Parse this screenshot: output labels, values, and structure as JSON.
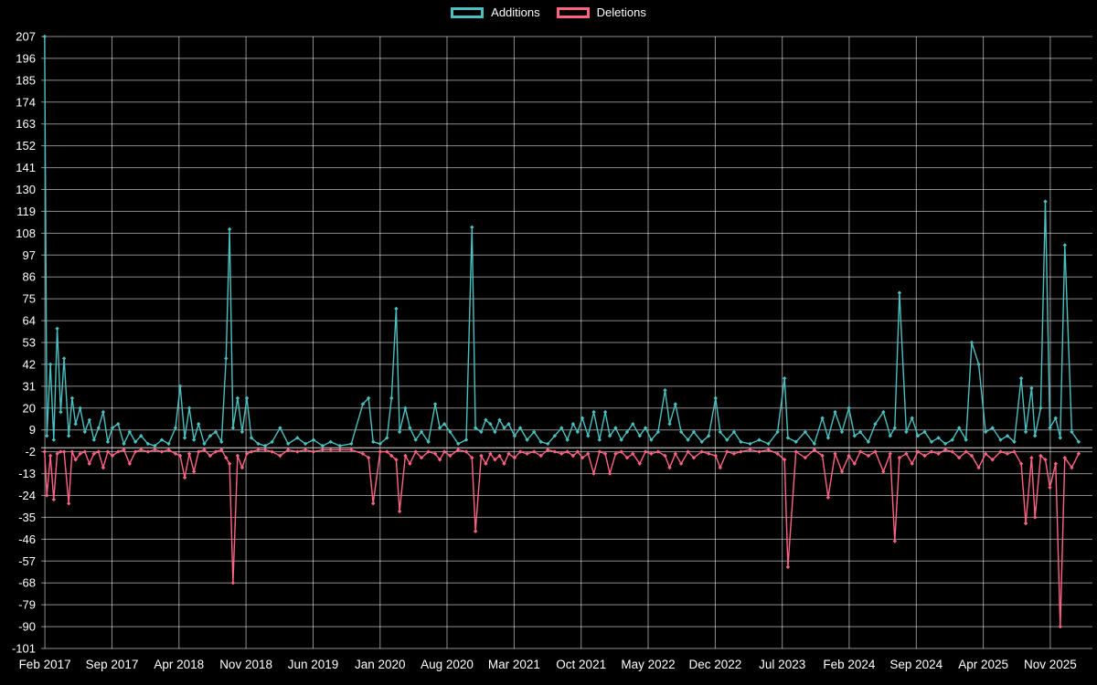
{
  "page": {
    "background": "#000000",
    "text_color": "#ffffff"
  },
  "legend": {
    "items": [
      {
        "label": "Additions",
        "color": "#4bc0c0"
      },
      {
        "label": "Deletions",
        "color": "#ff6384"
      }
    ]
  },
  "chart_data": {
    "type": "line",
    "title": "",
    "xlabel": "",
    "ylabel": "",
    "legend_position": "top",
    "grid": true,
    "background": "#000000",
    "grid_color": "rgba(255,255,255,0.55)",
    "zero_line_color": "rgba(255,255,255,0.85)",
    "text_color": "#ffffff",
    "ylim": [
      -101,
      207
    ],
    "xlim": [
      2017.05,
      2026.2
    ],
    "y_ticks": [
      207,
      196,
      185,
      174,
      163,
      152,
      141,
      130,
      119,
      108,
      97,
      86,
      75,
      64,
      53,
      42,
      31,
      20,
      9,
      -2,
      -13,
      -24,
      -35,
      -46,
      -57,
      -68,
      -79,
      -90,
      -101
    ],
    "x_ticks": [
      {
        "label": "Feb 2017",
        "x": 2017.083
      },
      {
        "label": "Sep 2017",
        "x": 2017.667
      },
      {
        "label": "Apr 2018",
        "x": 2018.25
      },
      {
        "label": "Nov 2018",
        "x": 2018.833
      },
      {
        "label": "Jun 2019",
        "x": 2019.417
      },
      {
        "label": "Jan 2020",
        "x": 2020.0
      },
      {
        "label": "Aug 2020",
        "x": 2020.583
      },
      {
        "label": "Mar 2021",
        "x": 2021.167
      },
      {
        "label": "Oct 2021",
        "x": 2021.75
      },
      {
        "label": "May 2022",
        "x": 2022.333
      },
      {
        "label": "Dec 2022",
        "x": 2022.917
      },
      {
        "label": "Jul 2023",
        "x": 2023.5
      },
      {
        "label": "Feb 2024",
        "x": 2024.083
      },
      {
        "label": "Sep 2024",
        "x": 2024.667
      },
      {
        "label": "Apr 2025",
        "x": 2025.25
      },
      {
        "label": "Nov 2025",
        "x": 2025.833
      }
    ],
    "series": [
      {
        "name": "Additions",
        "color": "#4bc0c0"
      },
      {
        "name": "Deletions",
        "color": "#ff6384"
      }
    ],
    "x_unit": "decimal_year",
    "points_format": [
      "x_decimal_year",
      "additions",
      "deletions"
    ],
    "points": [
      [
        2017.08,
        207,
        -2
      ],
      [
        2017.1,
        6,
        -24
      ],
      [
        2017.13,
        42,
        -4
      ],
      [
        2017.16,
        4,
        -26
      ],
      [
        2017.19,
        60,
        -3
      ],
      [
        2017.22,
        18,
        -2
      ],
      [
        2017.25,
        45,
        -2
      ],
      [
        2017.29,
        6,
        -28
      ],
      [
        2017.32,
        25,
        -2
      ],
      [
        2017.35,
        12,
        -6
      ],
      [
        2017.39,
        20,
        -3
      ],
      [
        2017.43,
        8,
        -2
      ],
      [
        2017.47,
        14,
        -8
      ],
      [
        2017.51,
        4,
        -3
      ],
      [
        2017.55,
        10,
        -2
      ],
      [
        2017.59,
        18,
        -10
      ],
      [
        2017.63,
        3,
        -2
      ],
      [
        2017.67,
        10,
        -4
      ],
      [
        2017.72,
        12,
        -2
      ],
      [
        2017.77,
        2,
        -1
      ],
      [
        2017.82,
        8,
        -8
      ],
      [
        2017.87,
        3,
        -2
      ],
      [
        2017.92,
        6,
        -1
      ],
      [
        2017.98,
        2,
        -2
      ],
      [
        2018.04,
        1,
        -1
      ],
      [
        2018.1,
        4,
        -2
      ],
      [
        2018.16,
        2,
        -1
      ],
      [
        2018.22,
        10,
        -3
      ],
      [
        2018.26,
        31,
        -4
      ],
      [
        2018.3,
        5,
        -15
      ],
      [
        2018.34,
        20,
        -3
      ],
      [
        2018.38,
        4,
        -12
      ],
      [
        2018.42,
        12,
        -2
      ],
      [
        2018.47,
        2,
        -1
      ],
      [
        2018.52,
        6,
        -4
      ],
      [
        2018.57,
        8,
        -2
      ],
      [
        2018.62,
        3,
        -1
      ],
      [
        2018.66,
        45,
        -5
      ],
      [
        2018.69,
        110,
        -8
      ],
      [
        2018.72,
        10,
        -68
      ],
      [
        2018.76,
        25,
        -4
      ],
      [
        2018.8,
        8,
        -10
      ],
      [
        2018.84,
        25,
        -3
      ],
      [
        2018.88,
        5,
        -2
      ],
      [
        2018.94,
        2,
        -1
      ],
      [
        2019.0,
        1,
        -1
      ],
      [
        2019.06,
        3,
        -2
      ],
      [
        2019.13,
        10,
        -4
      ],
      [
        2019.2,
        2,
        -1
      ],
      [
        2019.28,
        5,
        -2
      ],
      [
        2019.35,
        2,
        -1
      ],
      [
        2019.42,
        4,
        -2
      ],
      [
        2019.5,
        1,
        -1
      ],
      [
        2019.57,
        3,
        -1
      ],
      [
        2019.65,
        1,
        -1
      ],
      [
        2019.75,
        2,
        -1
      ],
      [
        2019.85,
        22,
        -3
      ],
      [
        2019.9,
        25,
        -5
      ],
      [
        2019.94,
        3,
        -28
      ],
      [
        2020.0,
        2,
        -2
      ],
      [
        2020.06,
        5,
        -2
      ],
      [
        2020.1,
        25,
        -4
      ],
      [
        2020.14,
        70,
        -6
      ],
      [
        2020.17,
        8,
        -32
      ],
      [
        2020.22,
        20,
        -4
      ],
      [
        2020.26,
        10,
        -8
      ],
      [
        2020.31,
        4,
        -2
      ],
      [
        2020.36,
        8,
        -5
      ],
      [
        2020.42,
        3,
        -2
      ],
      [
        2020.48,
        22,
        -3
      ],
      [
        2020.52,
        10,
        -6
      ],
      [
        2020.56,
        12,
        -2
      ],
      [
        2020.61,
        8,
        -4
      ],
      [
        2020.68,
        2,
        -1
      ],
      [
        2020.75,
        4,
        -2
      ],
      [
        2020.8,
        111,
        -5
      ],
      [
        2020.83,
        10,
        -42
      ],
      [
        2020.88,
        8,
        -4
      ],
      [
        2020.92,
        14,
        -8
      ],
      [
        2020.96,
        12,
        -3
      ],
      [
        2021.0,
        8,
        -6
      ],
      [
        2021.04,
        14,
        -4
      ],
      [
        2021.08,
        10,
        -8
      ],
      [
        2021.12,
        12,
        -3
      ],
      [
        2021.17,
        6,
        -5
      ],
      [
        2021.22,
        10,
        -2
      ],
      [
        2021.28,
        4,
        -3
      ],
      [
        2021.34,
        8,
        -2
      ],
      [
        2021.4,
        3,
        -4
      ],
      [
        2021.46,
        2,
        -1
      ],
      [
        2021.52,
        6,
        -2
      ],
      [
        2021.58,
        10,
        -3
      ],
      [
        2021.63,
        4,
        -2
      ],
      [
        2021.68,
        12,
        -4
      ],
      [
        2021.72,
        8,
        -2
      ],
      [
        2021.76,
        15,
        -5
      ],
      [
        2021.81,
        6,
        -3
      ],
      [
        2021.86,
        18,
        -13
      ],
      [
        2021.91,
        4,
        -2
      ],
      [
        2021.96,
        18,
        -3
      ],
      [
        2022.0,
        6,
        -13
      ],
      [
        2022.05,
        10,
        -3
      ],
      [
        2022.1,
        4,
        -2
      ],
      [
        2022.15,
        8,
        -5
      ],
      [
        2022.2,
        12,
        -3
      ],
      [
        2022.26,
        6,
        -8
      ],
      [
        2022.31,
        10,
        -2
      ],
      [
        2022.36,
        4,
        -3
      ],
      [
        2022.42,
        8,
        -2
      ],
      [
        2022.48,
        29,
        -4
      ],
      [
        2022.52,
        12,
        -10
      ],
      [
        2022.57,
        22,
        -3
      ],
      [
        2022.62,
        8,
        -8
      ],
      [
        2022.68,
        4,
        -2
      ],
      [
        2022.73,
        8,
        -5
      ],
      [
        2022.8,
        3,
        -2
      ],
      [
        2022.86,
        6,
        -3
      ],
      [
        2022.92,
        25,
        -4
      ],
      [
        2022.96,
        8,
        -10
      ],
      [
        2023.02,
        4,
        -2
      ],
      [
        2023.08,
        8,
        -3
      ],
      [
        2023.14,
        3,
        -2
      ],
      [
        2023.22,
        2,
        -1
      ],
      [
        2023.3,
        4,
        -2
      ],
      [
        2023.38,
        2,
        -1
      ],
      [
        2023.46,
        8,
        -3
      ],
      [
        2023.52,
        35,
        -6
      ],
      [
        2023.55,
        5,
        -60
      ],
      [
        2023.62,
        3,
        -2
      ],
      [
        2023.7,
        8,
        -5
      ],
      [
        2023.78,
        2,
        -1
      ],
      [
        2023.85,
        15,
        -4
      ],
      [
        2023.9,
        5,
        -25
      ],
      [
        2023.96,
        18,
        -3
      ],
      [
        2024.02,
        8,
        -12
      ],
      [
        2024.08,
        20,
        -4
      ],
      [
        2024.13,
        6,
        -8
      ],
      [
        2024.18,
        8,
        -2
      ],
      [
        2024.25,
        3,
        -4
      ],
      [
        2024.31,
        12,
        -2
      ],
      [
        2024.38,
        18,
        -12
      ],
      [
        2024.44,
        6,
        -3
      ],
      [
        2024.48,
        10,
        -47
      ],
      [
        2024.52,
        78,
        -5
      ],
      [
        2024.58,
        8,
        -3
      ],
      [
        2024.63,
        15,
        -8
      ],
      [
        2024.68,
        6,
        -2
      ],
      [
        2024.74,
        8,
        -4
      ],
      [
        2024.8,
        3,
        -2
      ],
      [
        2024.86,
        5,
        -3
      ],
      [
        2024.92,
        2,
        -1
      ],
      [
        2024.98,
        4,
        -2
      ],
      [
        2025.04,
        10,
        -5
      ],
      [
        2025.1,
        4,
        -2
      ],
      [
        2025.15,
        53,
        -4
      ],
      [
        2025.21,
        42,
        -10
      ],
      [
        2025.27,
        8,
        -3
      ],
      [
        2025.33,
        10,
        -6
      ],
      [
        2025.4,
        4,
        -2
      ],
      [
        2025.46,
        6,
        -3
      ],
      [
        2025.52,
        3,
        -2
      ],
      [
        2025.58,
        35,
        -8
      ],
      [
        2025.62,
        8,
        -38
      ],
      [
        2025.67,
        30,
        -5
      ],
      [
        2025.7,
        6,
        -35
      ],
      [
        2025.75,
        20,
        -4
      ],
      [
        2025.79,
        124,
        -6
      ],
      [
        2025.83,
        10,
        -20
      ],
      [
        2025.88,
        15,
        -8
      ],
      [
        2025.92,
        5,
        -90
      ],
      [
        2025.96,
        102,
        -5
      ],
      [
        2026.02,
        8,
        -10
      ],
      [
        2026.08,
        3,
        -3
      ]
    ]
  }
}
